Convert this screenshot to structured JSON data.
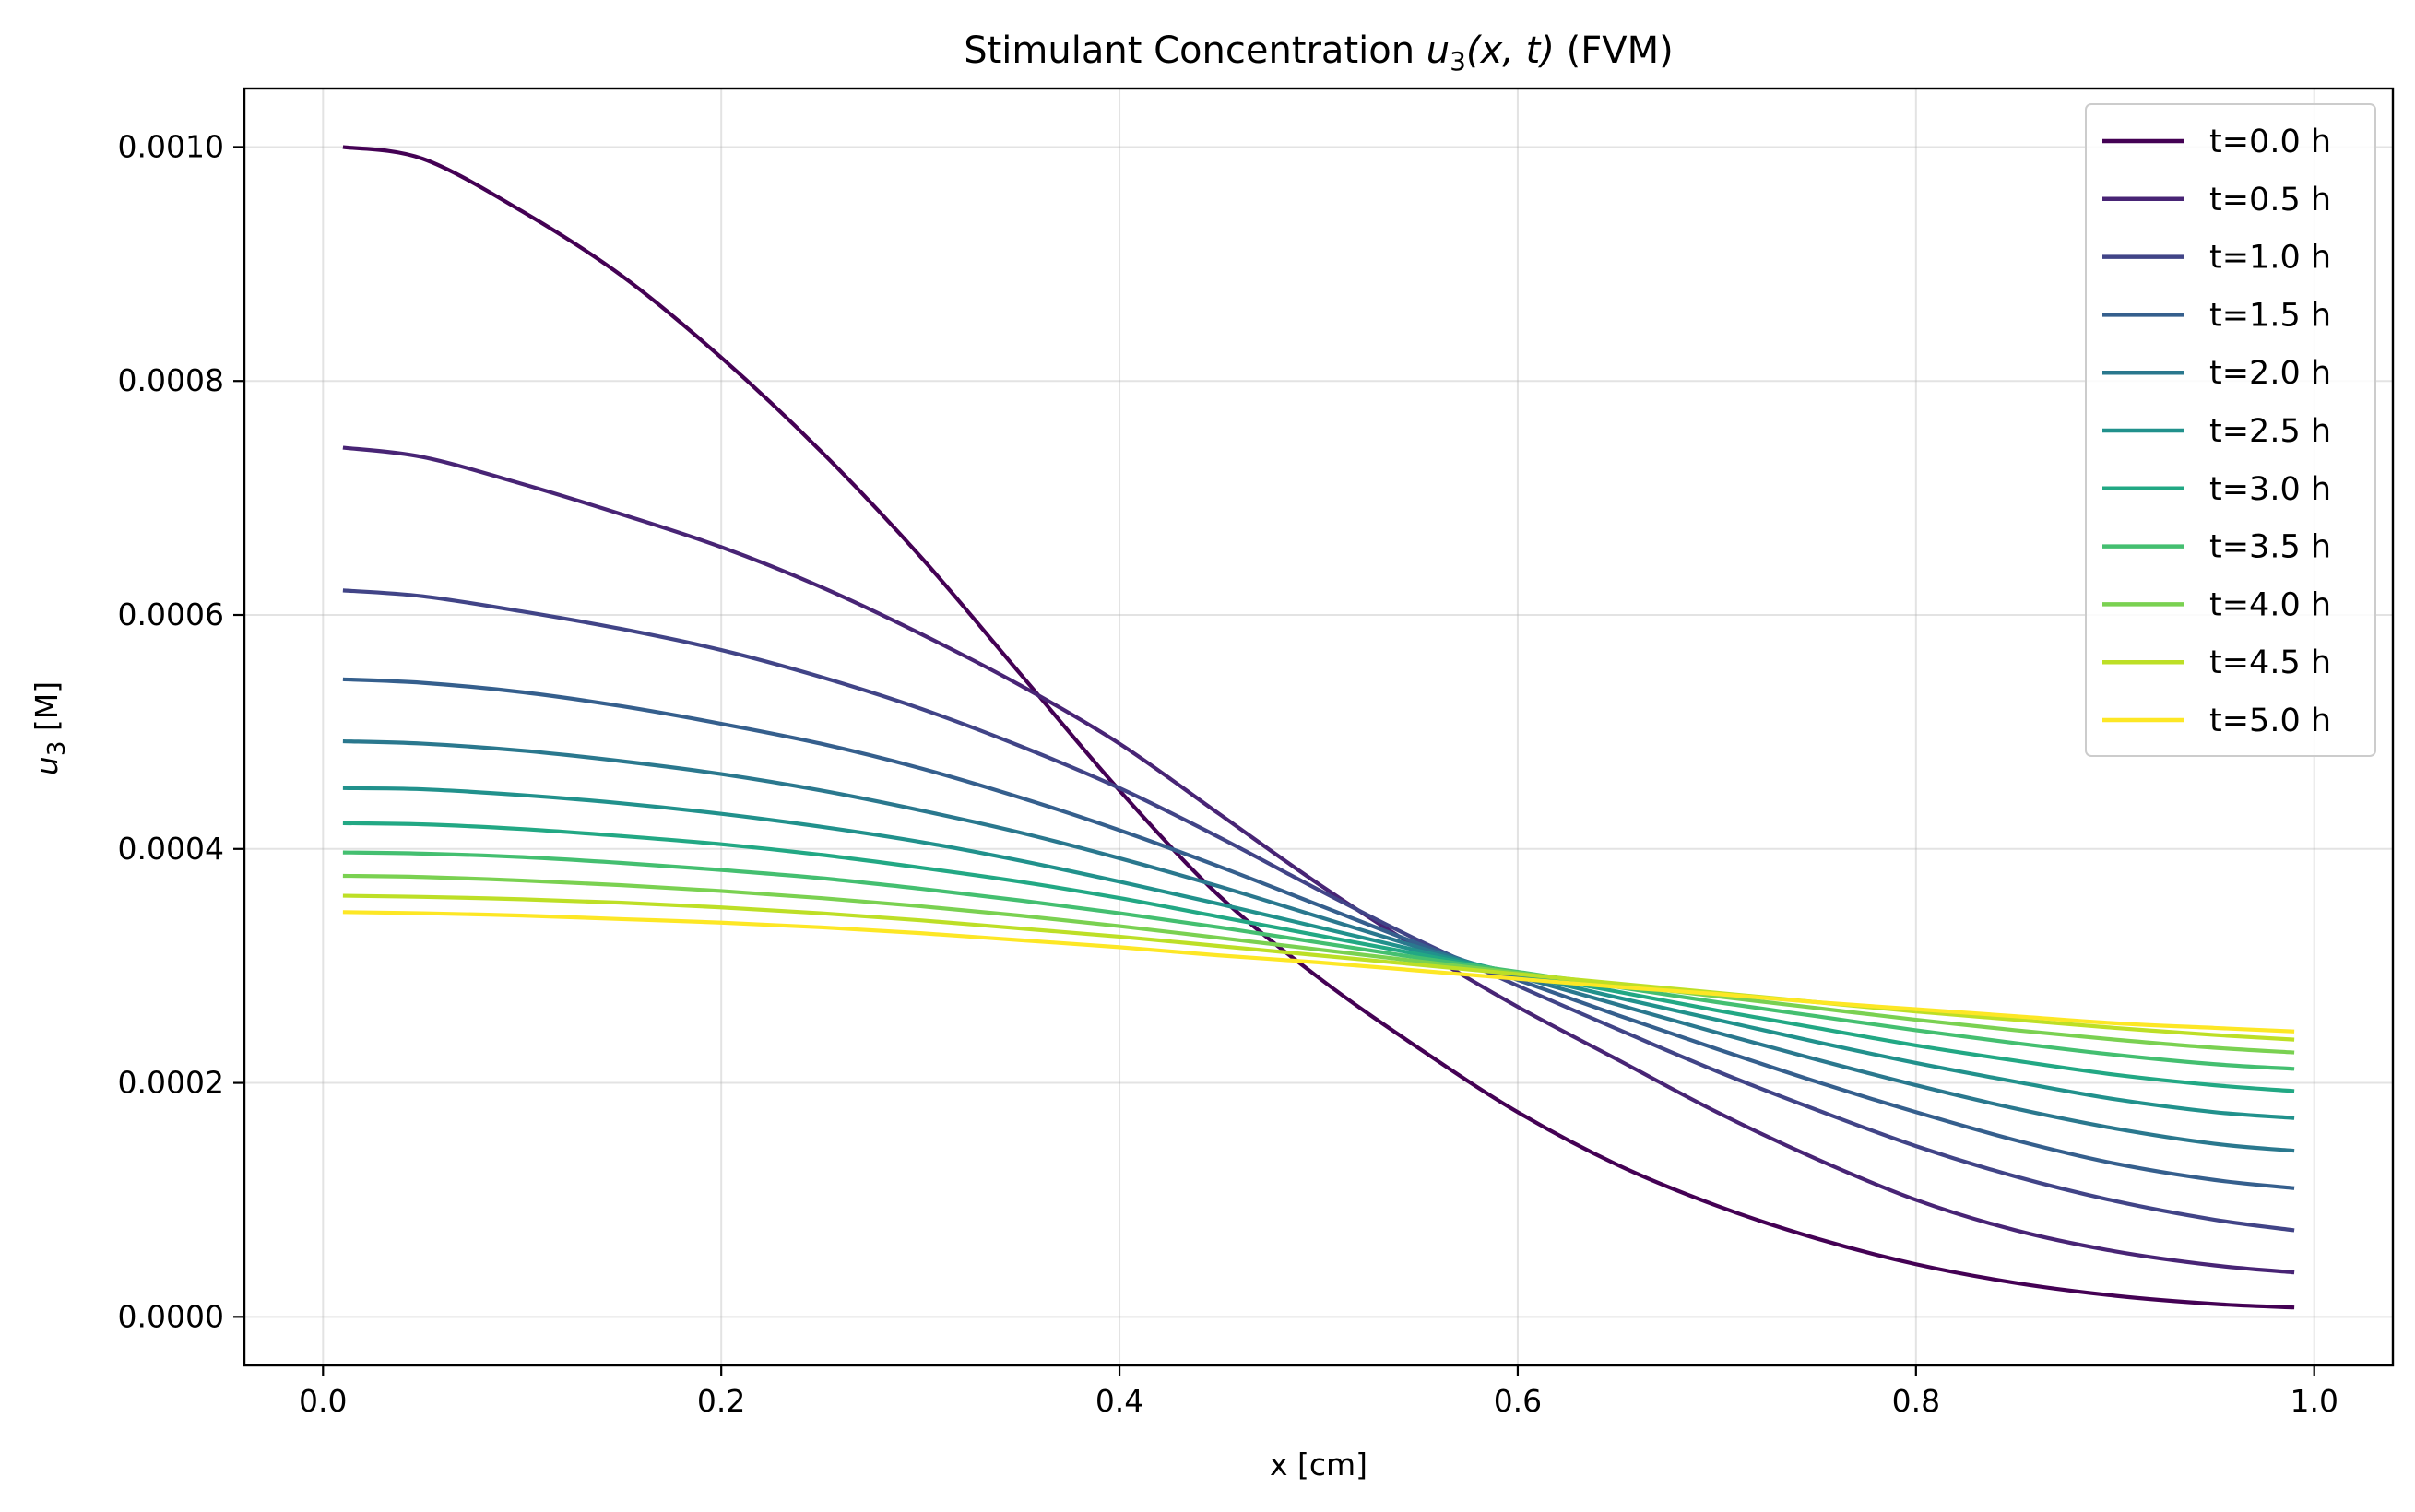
{
  "chart_data": {
    "type": "line",
    "title_prefix": "Stimulant Concentration ",
    "title_var": "u",
    "title_sub": "3",
    "title_args": "(x, t)",
    "title_suffix": " (FVM)",
    "xlabel": "x [cm]",
    "ylabel_var": "u",
    "ylabel_sub": "3",
    "ylabel_unit": " [M]",
    "xlim": [
      -0.0395,
      1.0395
    ],
    "ylim": [
      -4.15e-05,
      0.00105
    ],
    "xticks": [
      0.0,
      0.2,
      0.4,
      0.6,
      0.8,
      1.0
    ],
    "xtick_labels": [
      "0.0",
      "0.2",
      "0.4",
      "0.6",
      "0.8",
      "1.0"
    ],
    "yticks": [
      0.0,
      0.0002,
      0.0004,
      0.0006,
      0.0008,
      0.001
    ],
    "ytick_labels": [
      "0.0000",
      "0.0002",
      "0.0004",
      "0.0006",
      "0.0008",
      "0.0010"
    ],
    "grid": true,
    "legend_position": "top-right",
    "x": [
      0.01,
      0.05,
      0.1,
      0.15,
      0.2,
      0.25,
      0.3,
      0.35,
      0.4,
      0.45,
      0.5,
      0.55,
      0.6,
      0.65,
      0.7,
      0.75,
      0.8,
      0.85,
      0.9,
      0.95,
      0.99
    ],
    "series": [
      {
        "name": "t=0.0 h",
        "color": "#440154",
        "values": [
          0.001,
          0.00099,
          0.000945,
          0.00089,
          0.00082,
          0.00074,
          0.00065,
          0.00055,
          0.00045,
          0.00036,
          0.00029,
          0.00023,
          0.000175,
          0.00013,
          9.5e-05,
          6.7e-05,
          4.5e-05,
          2.9e-05,
          1.8e-05,
          1.1e-05,
          8e-06
        ]
      },
      {
        "name": "t=0.5 h",
        "color": "#482475",
        "values": [
          0.000743,
          0.000735,
          0.000712,
          0.000686,
          0.000658,
          0.000624,
          0.000584,
          0.00054,
          0.00049,
          0.00043,
          0.00037,
          0.000315,
          0.000265,
          0.00022,
          0.000175,
          0.000135,
          0.0001,
          7.4e-05,
          5.6e-05,
          4.4e-05,
          3.8e-05
        ]
      },
      {
        "name": "t=1.0 h",
        "color": "#414487",
        "values": [
          0.000621,
          0.000616,
          0.000603,
          0.000588,
          0.00057,
          0.000547,
          0.00052,
          0.000488,
          0.000452,
          0.00041,
          0.000365,
          0.000322,
          0.000283,
          0.000246,
          0.00021,
          0.000177,
          0.000146,
          0.00012,
          9.9e-05,
          8.3e-05,
          7.4e-05
        ]
      },
      {
        "name": "t=1.5 h",
        "color": "#355f8d",
        "values": [
          0.000545,
          0.000542,
          0.000534,
          0.000522,
          0.000507,
          0.00049,
          0.000469,
          0.000444,
          0.000416,
          0.000385,
          0.000352,
          0.000319,
          0.000288,
          0.000258,
          0.000229,
          0.000201,
          0.000175,
          0.000151,
          0.000131,
          0.000117,
          0.00011
        ]
      },
      {
        "name": "t=2.0 h",
        "color": "#2a788e",
        "values": [
          0.000492,
          0.00049,
          0.000484,
          0.000475,
          0.000464,
          0.00045,
          0.000433,
          0.000414,
          0.000392,
          0.000368,
          0.000342,
          0.000316,
          0.000291,
          0.000267,
          0.000243,
          0.00022,
          0.000198,
          0.000178,
          0.000161,
          0.000148,
          0.000142
        ]
      },
      {
        "name": "t=2.5 h",
        "color": "#21918c",
        "values": [
          0.000452,
          0.000451,
          0.000446,
          0.000439,
          0.00043,
          0.000419,
          0.000406,
          0.00039,
          0.000372,
          0.000353,
          0.000333,
          0.000313,
          0.000293,
          0.000273,
          0.000254,
          0.000235,
          0.000217,
          0.000201,
          0.000186,
          0.000175,
          0.00017
        ]
      },
      {
        "name": "t=3.0 h",
        "color": "#22a884",
        "values": [
          0.000422,
          0.000421,
          0.000417,
          0.000411,
          0.000404,
          0.000395,
          0.000384,
          0.000372,
          0.000358,
          0.000342,
          0.000326,
          0.00031,
          0.000294,
          0.000278,
          0.000262,
          0.000247,
          0.000232,
          0.000219,
          0.000207,
          0.000198,
          0.000193
        ]
      },
      {
        "name": "t=3.5 h",
        "color": "#44bf70",
        "values": [
          0.000397,
          0.000396,
          0.000393,
          0.000388,
          0.000382,
          0.000375,
          0.000366,
          0.000356,
          0.000345,
          0.000333,
          0.00032,
          0.000307,
          0.000295,
          0.000282,
          0.000269,
          0.000257,
          0.000245,
          0.000234,
          0.000224,
          0.000216,
          0.000212
        ]
      },
      {
        "name": "t=4.0 h",
        "color": "#7ad151",
        "values": [
          0.000377,
          0.000376,
          0.000373,
          0.000369,
          0.000364,
          0.000358,
          0.000351,
          0.000343,
          0.000334,
          0.000324,
          0.000314,
          0.000304,
          0.000294,
          0.000284,
          0.000274,
          0.000264,
          0.000254,
          0.000245,
          0.000237,
          0.00023,
          0.000226
        ]
      },
      {
        "name": "t=4.5 h",
        "color": "#bddf26",
        "values": [
          0.00036,
          0.000359,
          0.000357,
          0.000354,
          0.00035,
          0.000345,
          0.000339,
          0.000332,
          0.000325,
          0.000317,
          0.000309,
          0.000301,
          0.000293,
          0.000285,
          0.000277,
          0.000269,
          0.000261,
          0.000254,
          0.000247,
          0.000241,
          0.000237
        ]
      },
      {
        "name": "t=5.0 h",
        "color": "#fde725",
        "values": [
          0.000346,
          0.000345,
          0.000343,
          0.00034,
          0.000337,
          0.000333,
          0.000328,
          0.000322,
          0.000316,
          0.000309,
          0.000303,
          0.000296,
          0.000289,
          0.000282,
          0.000276,
          0.000269,
          0.000263,
          0.000257,
          0.000251,
          0.000247,
          0.000244
        ]
      }
    ]
  }
}
